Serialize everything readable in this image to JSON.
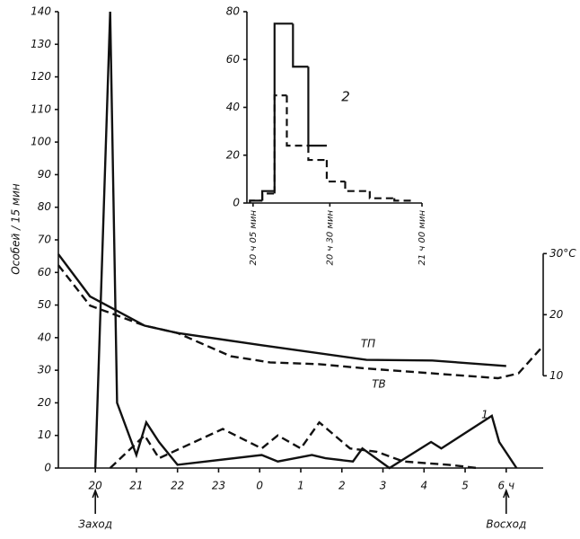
{
  "chart_data": [
    {
      "type": "line",
      "y_label": "Особей / 15 мин",
      "annotations": [
        "Заход",
        "Восход"
      ],
      "xlim": [
        19.1,
        30.9
      ],
      "ylim": [
        0,
        140
      ],
      "y2lim": [
        -5.1,
        69.6
      ],
      "xticks": [
        20,
        21,
        22,
        23,
        {
          "value": 24,
          "label": "0"
        },
        {
          "value": 25,
          "label": "1"
        },
        {
          "value": 26,
          "label": "2"
        },
        {
          "value": 27,
          "label": "3"
        },
        {
          "value": 28,
          "label": "4"
        },
        {
          "value": 29,
          "label": "5"
        },
        {
          "value": 30,
          "label": "6 ч"
        }
      ],
      "yticks": [
        0,
        10,
        20,
        30,
        40,
        50,
        60,
        70,
        80,
        90,
        100,
        110,
        120,
        130,
        140
      ],
      "y2ticks": [
        10,
        20,
        {
          "value": 30,
          "label": "30°C"
        }
      ],
      "series": [
        {
          "name": "1",
          "color": "#111111",
          "dash": false,
          "x": [
            20.0,
            20.36,
            20.53,
            21.0,
            21.24,
            21.55,
            22.0,
            24.05,
            24.44,
            25.27,
            25.6,
            26.27,
            26.5,
            27.16,
            28.17,
            28.42,
            29.65,
            29.83,
            30.25
          ],
          "values": [
            0,
            140,
            20,
            4,
            14,
            8,
            1,
            4,
            2,
            4,
            3,
            2,
            6,
            0,
            8,
            6,
            16,
            8,
            0
          ]
        },
        {
          "color": "#111111",
          "dash": true,
          "x": [
            20.36,
            21.2,
            21.55,
            23.1,
            24.05,
            24.44,
            25.0,
            25.45,
            26.2,
            26.85,
            27.5,
            28.6,
            29.3
          ],
          "values": [
            0,
            10,
            3,
            12,
            6,
            10,
            6,
            14,
            6,
            5,
            2,
            1,
            0
          ]
        },
        {
          "name": "ТП",
          "color": "#111111",
          "dash": false,
          "axis": "y2",
          "x": [
            19.1,
            19.87,
            21.2,
            22.0,
            24.05,
            26.6,
            28.2,
            30.0
          ],
          "values": [
            29.9,
            23,
            18.2,
            17,
            15,
            12.6,
            12.5,
            11.6
          ]
        },
        {
          "name": "ТВ",
          "color": "#111111",
          "dash": true,
          "axis": "y2",
          "x": [
            19.1,
            19.87,
            21.2,
            22.0,
            23.3,
            24.25,
            25.45,
            26.6,
            28.2,
            29.8,
            30.3,
            30.9
          ],
          "values": [
            28.1,
            21.5,
            18.2,
            17,
            13.2,
            12.2,
            11.9,
            11.2,
            10.4,
            9.6,
            10.4,
            14.9
          ]
        }
      ]
    },
    {
      "type": "histogram",
      "annotation": "2",
      "xlim": [
        3,
        60
      ],
      "ylim": [
        0,
        80
      ],
      "xticks": [
        {
          "value": 5,
          "label": "20 ч 05 мин"
        },
        {
          "value": 30,
          "label": "20 ч 30 мин"
        },
        {
          "value": 60,
          "label": "21 ч 00 мин"
        }
      ],
      "yticks": [
        0,
        20,
        40,
        60,
        80
      ],
      "series": [
        {
          "color": "#111111",
          "dash": false,
          "bins": [
            4,
            8,
            12,
            18,
            23,
            29
          ],
          "values": [
            1,
            5,
            75,
            57,
            24
          ]
        },
        {
          "color": "#111111",
          "dash": true,
          "bins": [
            4,
            8,
            12,
            16,
            23,
            29,
            35,
            43,
            51,
            57
          ],
          "values": [
            1,
            4,
            45,
            24,
            18,
            9,
            5,
            2,
            1
          ]
        }
      ]
    }
  ]
}
